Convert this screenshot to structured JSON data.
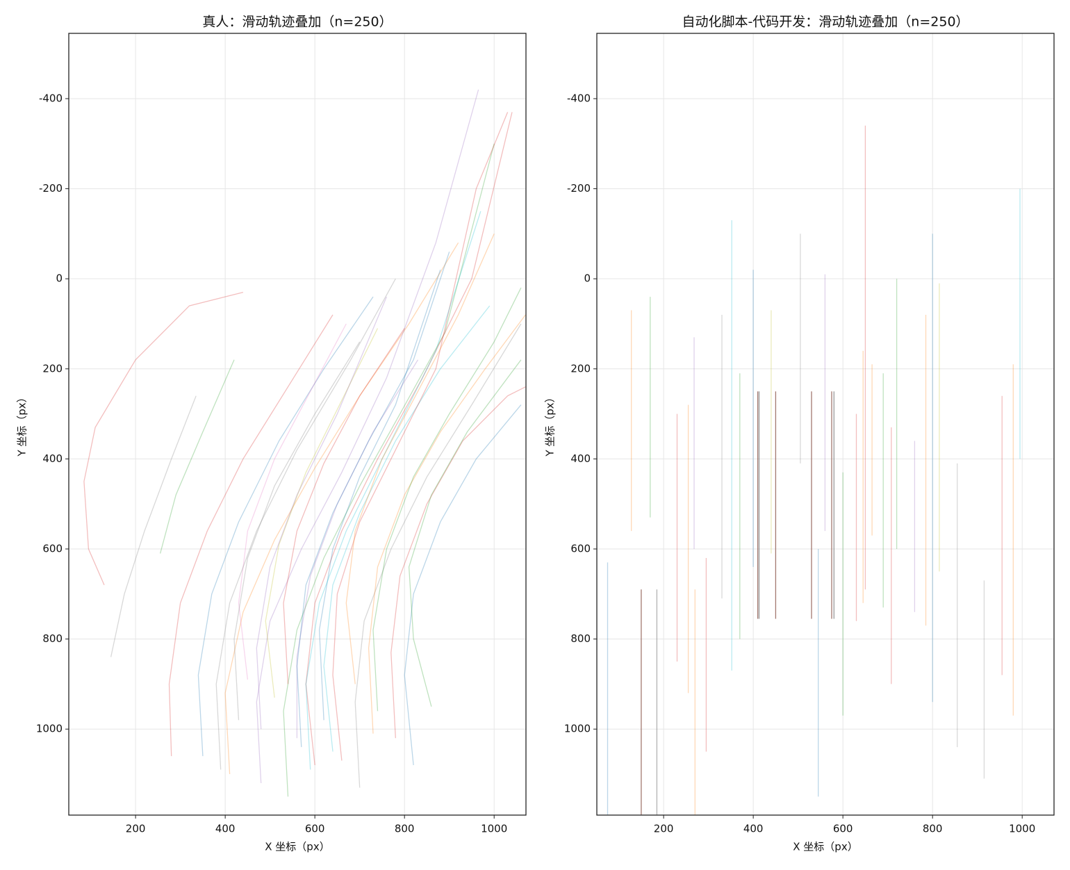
{
  "chart_data": [
    {
      "type": "line",
      "title": "真人：滑动轨迹叠加（n=250）",
      "xlabel": "X 坐标（px）",
      "ylabel": "Y 坐标（px）",
      "xlim": [
        51,
        1071
      ],
      "ylim": [
        1191,
        -545
      ],
      "xticks": [
        200,
        400,
        600,
        800,
        1000
      ],
      "yticks": [
        -400,
        -200,
        0,
        200,
        400,
        600,
        800,
        1000
      ],
      "grid": true,
      "line_alpha": 0.3,
      "series": [
        {
          "color": "#d62728",
          "x": [
            130,
            95,
            85,
            110,
            200,
            320,
            440
          ],
          "values": [
            680,
            600,
            450,
            330,
            180,
            60,
            30
          ]
        },
        {
          "color": "#7f7f7f",
          "x": [
            145,
            175,
            220,
            280,
            335
          ],
          "values": [
            840,
            700,
            560,
            400,
            260
          ]
        },
        {
          "color": "#2ca02c",
          "x": [
            255,
            290,
            350,
            420
          ],
          "values": [
            610,
            480,
            340,
            180
          ]
        },
        {
          "color": "#d62728",
          "x": [
            280,
            275,
            300,
            360,
            440,
            540,
            640
          ],
          "values": [
            1060,
            900,
            720,
            560,
            400,
            240,
            80
          ]
        },
        {
          "color": "#1f77b4",
          "x": [
            350,
            340,
            370,
            430,
            520,
            620,
            730
          ],
          "values": [
            1060,
            880,
            700,
            540,
            360,
            200,
            40
          ]
        },
        {
          "color": "#ff7f0e",
          "x": [
            410,
            400,
            440,
            510,
            600,
            700,
            810,
            920
          ],
          "values": [
            1100,
            920,
            740,
            580,
            420,
            260,
            100,
            -80
          ]
        },
        {
          "color": "#9467bd",
          "x": [
            480,
            470,
            500,
            570,
            660,
            760,
            870,
            965
          ],
          "values": [
            1120,
            940,
            760,
            600,
            430,
            220,
            -80,
            -420
          ]
        },
        {
          "color": "#2ca02c",
          "x": [
            540,
            530,
            560,
            620,
            700,
            790,
            890,
            1000
          ],
          "values": [
            1150,
            960,
            780,
            620,
            460,
            300,
            120,
            -300
          ]
        },
        {
          "color": "#d62728",
          "x": [
            600,
            580,
            600,
            660,
            740,
            840,
            950,
            1040
          ],
          "values": [
            1080,
            900,
            720,
            560,
            400,
            220,
            0,
            -370
          ]
        },
        {
          "color": "#17becf",
          "x": [
            640,
            620,
            640,
            700,
            780,
            880,
            990
          ],
          "values": [
            1050,
            860,
            680,
            520,
            360,
            200,
            60
          ]
        },
        {
          "color": "#7f7f7f",
          "x": [
            700,
            690,
            710,
            770,
            850,
            950,
            1060
          ],
          "values": [
            1130,
            940,
            760,
            600,
            440,
            280,
            100
          ]
        },
        {
          "color": "#ff7f0e",
          "x": [
            730,
            720,
            740,
            800,
            880,
            980,
            1070
          ],
          "values": [
            1010,
            820,
            640,
            480,
            340,
            200,
            80
          ]
        },
        {
          "color": "#d62728",
          "x": [
            780,
            770,
            790,
            850,
            930,
            1030,
            1070
          ],
          "values": [
            1020,
            830,
            660,
            500,
            360,
            260,
            240
          ]
        },
        {
          "color": "#1f77b4",
          "x": [
            820,
            800,
            820,
            880,
            960,
            1060
          ],
          "values": [
            1080,
            880,
            700,
            540,
            400,
            280
          ]
        },
        {
          "color": "#2ca02c",
          "x": [
            860,
            820,
            810,
            860,
            940,
            1060
          ],
          "values": [
            950,
            800,
            640,
            480,
            340,
            180
          ]
        },
        {
          "color": "#9467bd",
          "x": [
            560,
            560,
            590,
            650,
            730,
            830
          ],
          "values": [
            1020,
            840,
            660,
            500,
            340,
            180
          ]
        },
        {
          "color": "#bcbd22",
          "x": [
            510,
            490,
            520,
            580,
            660,
            740
          ],
          "values": [
            930,
            760,
            590,
            430,
            270,
            110
          ]
        },
        {
          "color": "#e377c2",
          "x": [
            450,
            430,
            450,
            510,
            590,
            670
          ],
          "values": [
            890,
            720,
            560,
            400,
            250,
            100
          ]
        },
        {
          "color": "#7f7f7f",
          "x": [
            390,
            380,
            410,
            470,
            560,
            680,
            780
          ],
          "values": [
            1090,
            900,
            720,
            560,
            380,
            180,
            0
          ]
        },
        {
          "color": "#d62728",
          "x": [
            660,
            640,
            650,
            700,
            780,
            870,
            960,
            1030
          ],
          "values": [
            1070,
            880,
            700,
            540,
            380,
            200,
            -200,
            -370
          ]
        },
        {
          "color": "#1f77b4",
          "x": [
            620,
            610,
            640,
            700,
            780,
            880
          ],
          "values": [
            980,
            780,
            600,
            440,
            280,
            -20
          ]
        },
        {
          "color": "#17becf",
          "x": [
            590,
            580,
            610,
            670,
            760,
            870,
            970
          ],
          "values": [
            1090,
            900,
            720,
            560,
            380,
            160,
            -150
          ]
        },
        {
          "color": "#ff7f0e",
          "x": [
            690,
            670,
            690,
            750,
            830,
            920,
            1000
          ],
          "values": [
            900,
            720,
            560,
            400,
            250,
            80,
            -100
          ]
        },
        {
          "color": "#2ca02c",
          "x": [
            740,
            730,
            760,
            820,
            900,
            1000,
            1060
          ],
          "values": [
            960,
            780,
            600,
            440,
            300,
            140,
            20
          ]
        },
        {
          "color": "#d62728",
          "x": [
            540,
            530,
            560,
            620,
            700,
            800
          ],
          "values": [
            900,
            720,
            560,
            410,
            260,
            110
          ]
        },
        {
          "color": "#9467bd",
          "x": [
            480,
            470,
            500,
            560,
            650,
            760
          ],
          "values": [
            1000,
            820,
            640,
            480,
            300,
            40
          ]
        },
        {
          "color": "#7f7f7f",
          "x": [
            430,
            420,
            450,
            510,
            600,
            700
          ],
          "values": [
            980,
            800,
            620,
            460,
            300,
            140
          ]
        },
        {
          "color": "#1f77b4",
          "x": [
            570,
            560,
            580,
            640,
            720,
            820,
            900
          ],
          "values": [
            1040,
            860,
            680,
            520,
            360,
            180,
            -60
          ]
        }
      ]
    },
    {
      "type": "line",
      "title": "自动化脚本-代码开发：滑动轨迹叠加（n=250）",
      "xlabel": "X 坐标（px）",
      "ylabel": "Y 坐标（px）",
      "xlim": [
        51,
        1071
      ],
      "ylim": [
        1191,
        -545
      ],
      "xticks": [
        200,
        400,
        600,
        800,
        1000
      ],
      "yticks": [
        -400,
        -200,
        0,
        200,
        400,
        600,
        800,
        1000
      ],
      "grid": true,
      "line_alpha": 0.3,
      "series": [
        {
          "color": "#1f77b4",
          "x": [
            75,
            75
          ],
          "values": [
            1190,
            630
          ]
        },
        {
          "color": "#ff7f0e",
          "x": [
            128,
            128
          ],
          "values": [
            560,
            70
          ]
        },
        {
          "color": "#8c564b",
          "x": [
            150,
            150
          ],
          "values": [
            1190,
            690
          ],
          "alpha": 0.8
        },
        {
          "color": "#2ca02c",
          "x": [
            170,
            170
          ],
          "values": [
            530,
            40
          ]
        },
        {
          "color": "#7f7f7f",
          "x": [
            185,
            185
          ],
          "values": [
            1190,
            690
          ],
          "alpha": 0.6
        },
        {
          "color": "#d62728",
          "x": [
            230,
            230
          ],
          "values": [
            850,
            300
          ]
        },
        {
          "color": "#ff7f0e",
          "x": [
            255,
            255
          ],
          "values": [
            920,
            280
          ]
        },
        {
          "color": "#9467bd",
          "x": [
            268,
            268
          ],
          "values": [
            600,
            130
          ]
        },
        {
          "color": "#ff7f0e",
          "x": [
            270,
            270
          ],
          "values": [
            1190,
            690
          ]
        },
        {
          "color": "#d62728",
          "x": [
            295,
            295
          ],
          "values": [
            1050,
            620
          ]
        },
        {
          "color": "#7f7f7f",
          "x": [
            330,
            330
          ],
          "values": [
            710,
            80
          ]
        },
        {
          "color": "#17becf",
          "x": [
            352,
            352
          ],
          "values": [
            870,
            -130
          ]
        },
        {
          "color": "#2ca02c",
          "x": [
            370,
            370
          ],
          "values": [
            800,
            210
          ]
        },
        {
          "color": "#1f77b4",
          "x": [
            400,
            400
          ],
          "values": [
            640,
            -20
          ]
        },
        {
          "color": "#8c564b",
          "x": [
            410,
            410
          ],
          "values": [
            755,
            250
          ],
          "alpha": 0.8
        },
        {
          "color": "#7f7f7f",
          "x": [
            413,
            413
          ],
          "values": [
            755,
            250
          ],
          "alpha": 0.8
        },
        {
          "color": "#bcbd22",
          "x": [
            440,
            440
          ],
          "values": [
            610,
            70
          ]
        },
        {
          "color": "#8c564b",
          "x": [
            450,
            450
          ],
          "values": [
            755,
            250
          ],
          "alpha": 0.8
        },
        {
          "color": "#7f7f7f",
          "x": [
            505,
            505
          ],
          "values": [
            410,
            -100
          ]
        },
        {
          "color": "#8c564b",
          "x": [
            530,
            530
          ],
          "values": [
            755,
            250
          ],
          "alpha": 0.8
        },
        {
          "color": "#1f77b4",
          "x": [
            545,
            545
          ],
          "values": [
            1150,
            600
          ]
        },
        {
          "color": "#9467bd",
          "x": [
            560,
            560
          ],
          "values": [
            560,
            -10
          ]
        },
        {
          "color": "#8c564b",
          "x": [
            575,
            575
          ],
          "values": [
            755,
            250
          ],
          "alpha": 0.8
        },
        {
          "color": "#7f7f7f",
          "x": [
            580,
            580
          ],
          "values": [
            755,
            250
          ],
          "alpha": 0.8
        },
        {
          "color": "#2ca02c",
          "x": [
            600,
            600
          ],
          "values": [
            970,
            430
          ]
        },
        {
          "color": "#d62728",
          "x": [
            630,
            630
          ],
          "values": [
            760,
            300
          ]
        },
        {
          "color": "#ff7f0e",
          "x": [
            645,
            645
          ],
          "values": [
            720,
            160
          ]
        },
        {
          "color": "#d62728",
          "x": [
            650,
            650
          ],
          "values": [
            690,
            -340
          ]
        },
        {
          "color": "#ff7f0e",
          "x": [
            665,
            665
          ],
          "values": [
            570,
            190
          ]
        },
        {
          "color": "#2ca02c",
          "x": [
            690,
            690
          ],
          "values": [
            730,
            210
          ]
        },
        {
          "color": "#d62728",
          "x": [
            708,
            708
          ],
          "values": [
            900,
            330
          ]
        },
        {
          "color": "#2ca02c",
          "x": [
            720,
            720
          ],
          "values": [
            600,
            0
          ]
        },
        {
          "color": "#9467bd",
          "x": [
            760,
            760
          ],
          "values": [
            740,
            360
          ]
        },
        {
          "color": "#ff7f0e",
          "x": [
            785,
            785
          ],
          "values": [
            770,
            80
          ]
        },
        {
          "color": "#1f77b4",
          "x": [
            800,
            800
          ],
          "values": [
            940,
            -100
          ]
        },
        {
          "color": "#bcbd22",
          "x": [
            815,
            815
          ],
          "values": [
            650,
            10
          ]
        },
        {
          "color": "#7f7f7f",
          "x": [
            855,
            855
          ],
          "values": [
            1040,
            410
          ]
        },
        {
          "color": "#7f7f7f",
          "x": [
            915,
            915
          ],
          "values": [
            1110,
            670
          ]
        },
        {
          "color": "#d62728",
          "x": [
            955,
            955
          ],
          "values": [
            880,
            260
          ]
        },
        {
          "color": "#ff7f0e",
          "x": [
            980,
            980
          ],
          "values": [
            970,
            190
          ]
        },
        {
          "color": "#17becf",
          "x": [
            995,
            995
          ],
          "values": [
            400,
            -200
          ]
        }
      ]
    }
  ]
}
